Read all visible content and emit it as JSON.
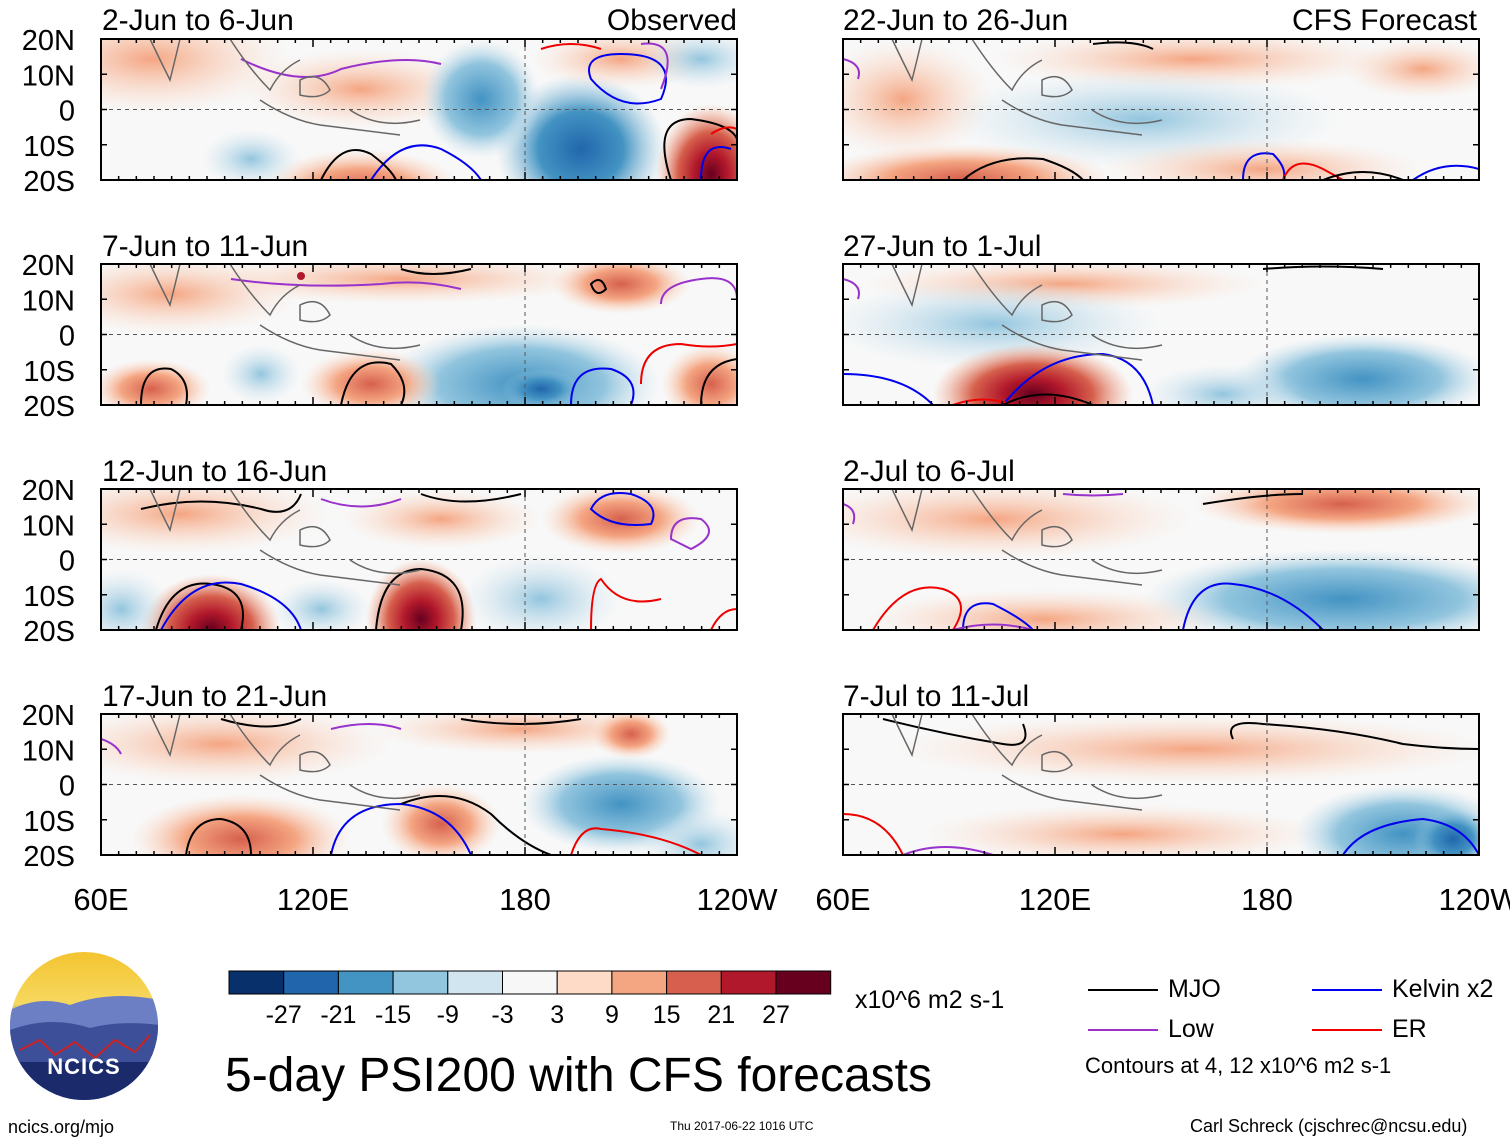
{
  "figure": {
    "title": "5-day PSI200 with CFS forecasts",
    "units": "x10^6 m2 s-1",
    "lat_labels": [
      "20N",
      "10N",
      "0",
      "10S",
      "20S"
    ],
    "lon_labels": [
      "60E",
      "120E",
      "180",
      "120W"
    ],
    "observed_label": "Observed",
    "forecast_label": "CFS Forecast"
  },
  "panels": {
    "left": [
      "2-Jun to 6-Jun",
      "7-Jun to 11-Jun",
      "12-Jun to 16-Jun",
      "17-Jun to 21-Jun"
    ],
    "right": [
      "22-Jun to 26-Jun",
      "27-Jun to 1-Jul",
      "2-Jul to 6-Jul",
      "7-Jul to 11-Jul"
    ]
  },
  "colorbar": {
    "labels": [
      "-27",
      "-21",
      "-15",
      "-9",
      "-3",
      "3",
      "9",
      "15",
      "21",
      "27"
    ],
    "colors": [
      "#08306b",
      "#2166ac",
      "#4393c3",
      "#92c5de",
      "#d1e5f0",
      "#f7f7f7",
      "#fddbc7",
      "#f4a582",
      "#d6604d",
      "#b2182b",
      "#67001f"
    ]
  },
  "legend": {
    "items": [
      {
        "label": "MJO",
        "color": "#000000"
      },
      {
        "label": "Kelvin x2",
        "color": "#0000ee"
      },
      {
        "label": "Low",
        "color": "#9932cc"
      },
      {
        "label": "ER",
        "color": "#ee0000"
      }
    ],
    "contour_note": "Contours at 4, 12 x10^6 m2 s-1"
  },
  "logo": {
    "text": "NCICS"
  },
  "footer": {
    "left": "ncics.org/mjo",
    "timestamp": "Thu 2017-06-22 1016 UTC",
    "credit": "Carl Schreck (cjschrec@ncsu.edu)"
  }
}
